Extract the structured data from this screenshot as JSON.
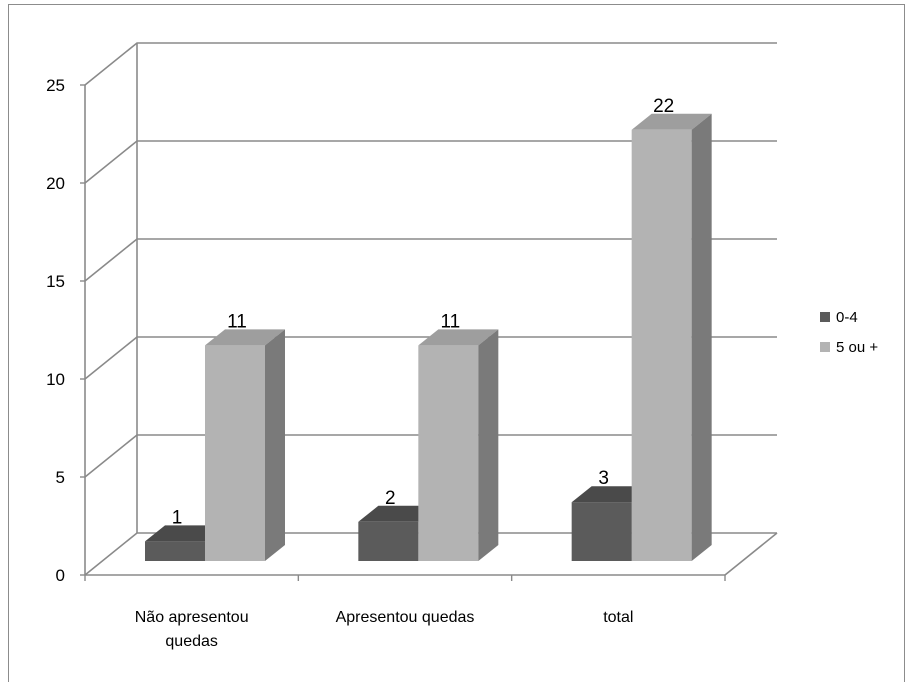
{
  "chart_data": {
    "type": "bar",
    "title": "",
    "xlabel": "",
    "ylabel": "",
    "ylim": [
      0,
      25
    ],
    "yticks": [
      0,
      5,
      10,
      15,
      20,
      25
    ],
    "categories": [
      [
        "Não apresentou",
        "quedas"
      ],
      [
        "Apresentou quedas"
      ],
      [
        "total"
      ]
    ],
    "series": [
      {
        "name": "0-4",
        "values": [
          1,
          2,
          3
        ],
        "colors": {
          "front": "#5b5b5b",
          "top": "#4a4a4a",
          "side": "#3f3f3f"
        }
      },
      {
        "name": "5 ou +",
        "values": [
          11,
          11,
          22
        ],
        "colors": {
          "front": "#b3b3b3",
          "top": "#9e9e9e",
          "side": "#7a7a7a"
        }
      }
    ],
    "grid": true,
    "legend": "right",
    "style": "3d-clustered-column"
  }
}
